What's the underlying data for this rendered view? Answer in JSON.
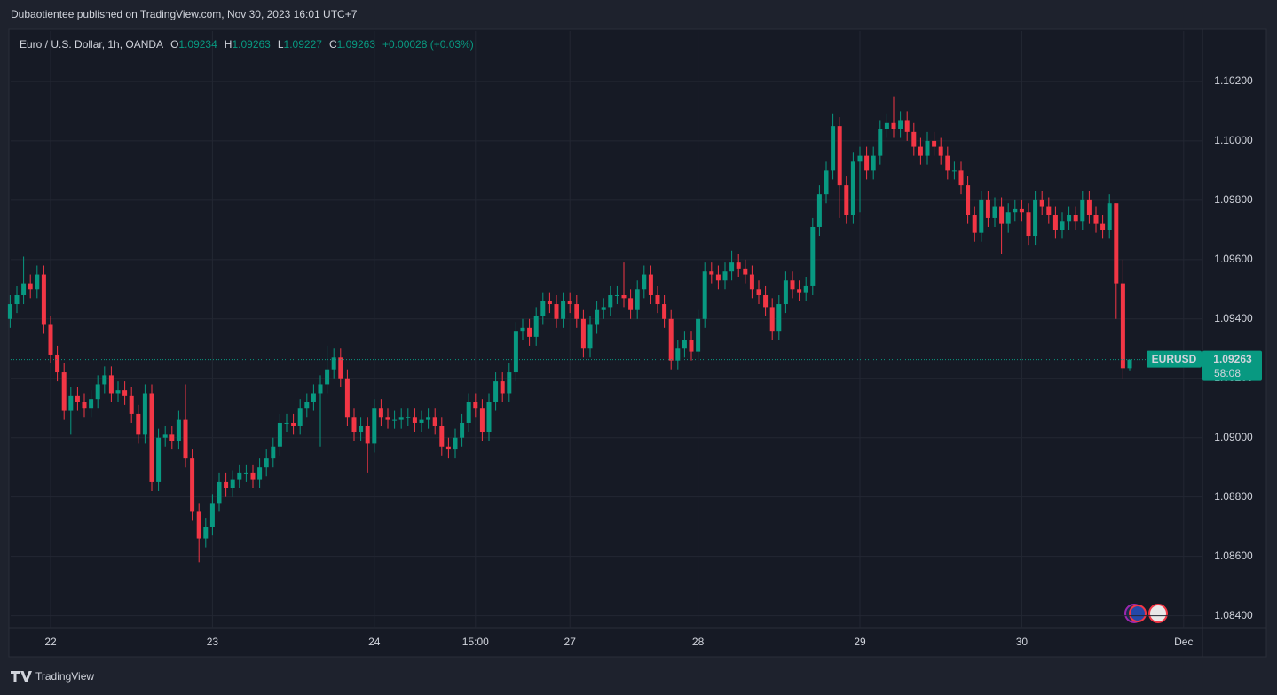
{
  "header": {
    "title": "Dubaotientee published on TradingView.com, Nov 30, 2023 16:01 UTC+7"
  },
  "footer": {
    "brand": "TradingView"
  },
  "chart_data": {
    "type": "candlestick",
    "title": "Euro / U.S. Dollar, 1h, OANDA",
    "legend_labels": {
      "open": "O",
      "high": "H",
      "low": "L",
      "close": "C"
    },
    "change_label": "+0.00028 (+0.03%)",
    "symbol": "EURUSD",
    "countdown": "58:08",
    "colors": {
      "up": "#089981",
      "down": "#f23645"
    },
    "grid": true,
    "ylim": [
      1.0836,
      1.1037
    ],
    "yticks": [
      {
        "value": 1.084,
        "label": "1.08400"
      },
      {
        "value": 1.086,
        "label": "1.08600"
      },
      {
        "value": 1.088,
        "label": "1.08800"
      },
      {
        "value": 1.09,
        "label": "1.09000"
      },
      {
        "value": 1.092,
        "label": "1.09200"
      },
      {
        "value": 1.094,
        "label": "1.09400"
      },
      {
        "value": 1.096,
        "label": "1.09600"
      },
      {
        "value": 1.098,
        "label": "1.09800"
      },
      {
        "value": 1.1,
        "label": "1.10000"
      },
      {
        "value": 1.102,
        "label": "1.10200"
      }
    ],
    "categories": [
      null,
      null,
      null,
      null,
      null,
      null,
      "22",
      null,
      null,
      null,
      null,
      null,
      null,
      null,
      null,
      null,
      null,
      null,
      null,
      null,
      null,
      null,
      null,
      null,
      null,
      null,
      null,
      null,
      null,
      null,
      "23",
      null,
      null,
      null,
      null,
      null,
      null,
      null,
      null,
      null,
      null,
      null,
      null,
      null,
      null,
      null,
      null,
      null,
      null,
      null,
      null,
      null,
      null,
      null,
      "24",
      null,
      null,
      null,
      null,
      null,
      null,
      null,
      null,
      null,
      null,
      null,
      null,
      null,
      null,
      "15:00",
      null,
      null,
      null,
      null,
      null,
      null,
      null,
      null,
      null,
      null,
      null,
      null,
      null,
      "27",
      null,
      null,
      null,
      null,
      null,
      null,
      null,
      null,
      null,
      null,
      null,
      null,
      null,
      null,
      null,
      null,
      null,
      null,
      "28",
      null,
      null,
      null,
      null,
      null,
      null,
      null,
      null,
      null,
      null,
      null,
      null,
      null,
      null,
      null,
      null,
      null,
      null,
      null,
      null,
      null,
      null,
      null,
      "29",
      null,
      null,
      null,
      null,
      null,
      null,
      null,
      null,
      null,
      null,
      null,
      null,
      null,
      null,
      null,
      null,
      null,
      null,
      null,
      null,
      null,
      null,
      null,
      "30",
      null,
      null,
      null,
      null,
      null,
      null,
      null,
      null,
      null,
      null,
      null,
      null,
      null,
      null,
      null,
      null,
      null,
      null,
      null,
      null,
      null,
      null,
      null,
      "Dec"
    ],
    "open": [
      1.094,
      1.0945,
      1.0948,
      1.0952,
      1.095,
      1.0955,
      1.0938,
      1.0928,
      1.0922,
      1.0909,
      1.0914,
      1.0912,
      1.091,
      1.0913,
      1.0918,
      1.0921,
      1.0915,
      1.0916,
      1.0914,
      1.0908,
      1.0901,
      1.0915,
      1.0885,
      1.09,
      1.0901,
      1.0899,
      1.0906,
      1.0893,
      1.0875,
      1.0866,
      1.087,
      1.0878,
      1.0885,
      1.0883,
      1.0886,
      1.0888,
      1.0888,
      1.0886,
      1.089,
      1.0893,
      1.0897,
      1.0905,
      1.0905,
      1.0904,
      1.091,
      1.0912,
      1.0915,
      1.0918,
      1.0923,
      1.0927,
      1.092,
      1.0907,
      1.0902,
      1.0904,
      1.0898,
      1.091,
      1.0907,
      1.0906,
      1.0906,
      1.0907,
      1.0907,
      1.0905,
      1.0906,
      1.0907,
      1.0904,
      1.0897,
      1.0896,
      1.09,
      1.0905,
      1.0912,
      1.091,
      1.0902,
      1.0912,
      1.0919,
      1.0915,
      1.0922,
      1.0936,
      1.0937,
      1.0934,
      1.0941,
      1.0946,
      1.0945,
      1.094,
      1.0946,
      1.0945,
      1.094,
      1.093,
      1.0938,
      1.0943,
      1.0944,
      1.0948,
      1.0948,
      1.0947,
      1.0943,
      1.095,
      1.0955,
      1.0948,
      1.0945,
      1.094,
      1.0926,
      1.093,
      1.0933,
      1.0929,
      1.094,
      1.0956,
      1.0955,
      1.0953,
      1.0956,
      1.0959,
      1.0957,
      1.0955,
      1.095,
      1.0948,
      1.0944,
      1.0936,
      1.0945,
      1.0953,
      1.095,
      1.0949,
      1.0951,
      1.0971,
      1.0982,
      1.099,
      1.1005,
      1.0985,
      1.0975,
      1.0993,
      1.0995,
      1.099,
      1.0995,
      1.1004,
      1.1006,
      1.1004,
      1.1007,
      1.1003,
      1.0998,
      1.0995,
      1.1,
      1.0998,
      1.0995,
      1.099,
      1.099,
      1.0985,
      1.0975,
      1.0969,
      1.098,
      1.0974,
      1.0978,
      1.0972,
      1.0976,
      1.0977,
      1.0976,
      1.0968,
      1.098,
      1.0978,
      1.0975,
      1.097,
      1.0973,
      1.0975,
      1.0973,
      1.098,
      1.0975,
      1.0972,
      1.097,
      1.0979,
      1.0952,
      1.09234,
      null,
      null,
      null,
      null,
      null,
      null,
      null,
      null
    ],
    "high": [
      1.0948,
      1.0951,
      1.0961,
      1.0955,
      1.0958,
      1.0958,
      1.0941,
      1.0931,
      1.0925,
      1.0917,
      1.0917,
      1.0915,
      1.0916,
      1.0921,
      1.0924,
      1.0924,
      1.0919,
      1.0919,
      1.0917,
      1.0911,
      1.0918,
      1.0918,
      1.0903,
      1.0904,
      1.0904,
      1.0909,
      1.0918,
      1.0896,
      1.0878,
      1.0873,
      1.0881,
      1.0888,
      1.0888,
      1.0889,
      1.0891,
      1.0891,
      1.0891,
      1.0893,
      1.0896,
      1.09,
      1.0908,
      1.0908,
      1.0908,
      1.0913,
      1.0915,
      1.0918,
      1.0921,
      1.0931,
      1.093,
      1.093,
      1.0923,
      1.091,
      1.0907,
      1.0907,
      1.0913,
      1.0913,
      1.091,
      1.0909,
      1.091,
      1.091,
      1.091,
      1.0909,
      1.091,
      1.091,
      1.0907,
      1.09,
      1.0903,
      1.0908,
      1.0915,
      1.0915,
      1.0913,
      1.0915,
      1.0922,
      1.0922,
      1.0925,
      1.0939,
      1.094,
      1.094,
      1.0944,
      1.0949,
      1.0949,
      1.0948,
      1.0949,
      1.0949,
      1.0948,
      1.0943,
      1.0941,
      1.0946,
      1.0947,
      1.0951,
      1.0951,
      1.0959,
      1.095,
      1.0953,
      1.0958,
      1.0958,
      1.0951,
      1.0948,
      1.0943,
      1.0933,
      1.0936,
      1.0936,
      1.0943,
      1.0959,
      1.0959,
      1.0958,
      1.0959,
      1.0963,
      1.0962,
      1.096,
      1.0958,
      1.0953,
      1.0951,
      1.0947,
      1.0948,
      1.0956,
      1.0956,
      1.0953,
      1.0954,
      1.0974,
      1.0985,
      1.0993,
      1.1009,
      1.1008,
      1.0988,
      1.0996,
      1.0998,
      1.0998,
      1.0998,
      1.1007,
      1.1009,
      1.1015,
      1.101,
      1.101,
      1.1006,
      1.1001,
      1.1003,
      1.1003,
      1.1001,
      1.0998,
      1.0993,
      1.0993,
      1.0988,
      1.0978,
      1.0983,
      1.0983,
      1.0981,
      1.0981,
      1.0979,
      1.098,
      1.098,
      1.0979,
      1.0983,
      1.0983,
      1.0981,
      1.0978,
      1.0976,
      1.0978,
      1.0978,
      1.0983,
      1.0983,
      1.0978,
      1.0975,
      1.0982,
      1.0979,
      1.096,
      1.09263,
      null,
      null,
      null,
      null,
      null,
      null,
      null,
      null
    ],
    "low": [
      1.0937,
      1.0942,
      1.0945,
      1.0947,
      1.0947,
      1.0935,
      1.0925,
      1.0919,
      1.0906,
      1.0901,
      1.0909,
      1.0907,
      1.0907,
      1.091,
      1.0915,
      1.0912,
      1.0912,
      1.0911,
      1.0905,
      1.0898,
      1.0898,
      1.0882,
      1.0882,
      1.0897,
      1.0896,
      1.0896,
      1.089,
      1.0872,
      1.0858,
      1.0863,
      1.0867,
      1.0875,
      1.088,
      1.088,
      1.0883,
      1.0885,
      1.0883,
      1.0883,
      1.0887,
      1.089,
      1.0894,
      1.0902,
      1.0901,
      1.0901,
      1.0907,
      1.0909,
      1.0897,
      1.0915,
      1.092,
      1.0917,
      1.0904,
      1.0899,
      1.0899,
      1.0888,
      1.0895,
      1.0904,
      1.0903,
      1.0903,
      1.0903,
      1.0904,
      1.0902,
      1.0902,
      1.0903,
      1.0901,
      1.0894,
      1.0893,
      1.0893,
      1.0897,
      1.0902,
      1.0907,
      1.0899,
      1.0899,
      1.0909,
      1.0912,
      1.0912,
      1.0919,
      1.0933,
      1.0931,
      1.0931,
      1.0938,
      1.0942,
      1.0937,
      1.0937,
      1.0942,
      1.0937,
      1.0927,
      1.0927,
      1.0935,
      1.094,
      1.0941,
      1.0945,
      1.0944,
      1.094,
      1.094,
      1.0947,
      1.0945,
      1.0942,
      1.0937,
      1.0923,
      1.0923,
      1.0927,
      1.0926,
      1.0926,
      1.0937,
      1.0952,
      1.095,
      1.095,
      1.0953,
      1.0954,
      1.0952,
      1.0947,
      1.0945,
      1.0941,
      1.0933,
      1.0933,
      1.0942,
      1.0947,
      1.0946,
      1.0946,
      1.0948,
      1.0968,
      1.0979,
      1.0987,
      1.0974,
      1.0972,
      1.0972,
      1.0976,
      1.0987,
      1.0987,
      1.0992,
      1.1001,
      1.1001,
      1.1001,
      1.1,
      1.0995,
      1.0992,
      1.0992,
      1.0995,
      1.0992,
      1.0987,
      1.0987,
      1.0982,
      1.0972,
      1.0966,
      1.0966,
      1.0971,
      1.0971,
      1.0962,
      1.0969,
      1.0973,
      1.0973,
      1.0965,
      1.0965,
      1.0975,
      1.0972,
      1.0967,
      1.0967,
      1.097,
      1.097,
      1.097,
      1.0972,
      1.0969,
      1.0967,
      1.0967,
      1.094,
      1.092,
      1.09227,
      null,
      null,
      null,
      null,
      null,
      null,
      null,
      null
    ],
    "close": [
      1.0945,
      1.0948,
      1.0952,
      1.095,
      1.0955,
      1.0938,
      1.0928,
      1.0922,
      1.0909,
      1.0914,
      1.0912,
      1.091,
      1.0913,
      1.0918,
      1.0921,
      1.0915,
      1.0916,
      1.0914,
      1.0908,
      1.0901,
      1.0915,
      1.0885,
      1.09,
      1.0901,
      1.0899,
      1.0906,
      1.0893,
      1.0875,
      1.0866,
      1.087,
      1.0878,
      1.0885,
      1.0883,
      1.0886,
      1.0888,
      1.0888,
      1.0886,
      1.089,
      1.0893,
      1.0897,
      1.0905,
      1.0905,
      1.0904,
      1.091,
      1.0912,
      1.0915,
      1.0918,
      1.0923,
      1.0927,
      1.092,
      1.0907,
      1.0902,
      1.0904,
      1.0898,
      1.091,
      1.0907,
      1.0906,
      1.0906,
      1.0907,
      1.0907,
      1.0905,
      1.0906,
      1.0907,
      1.0904,
      1.0897,
      1.0896,
      1.09,
      1.0905,
      1.0912,
      1.091,
      1.0902,
      1.0912,
      1.0919,
      1.0915,
      1.0922,
      1.0936,
      1.0937,
      1.0934,
      1.0941,
      1.0946,
      1.0945,
      1.094,
      1.0946,
      1.0945,
      1.094,
      1.093,
      1.0938,
      1.0943,
      1.0944,
      1.0948,
      1.0948,
      1.0947,
      1.0943,
      1.095,
      1.0955,
      1.0948,
      1.0945,
      1.094,
      1.0926,
      1.093,
      1.0933,
      1.0929,
      1.094,
      1.0956,
      1.0955,
      1.0953,
      1.0956,
      1.0959,
      1.0957,
      1.0955,
      1.095,
      1.0948,
      1.0944,
      1.0936,
      1.0945,
      1.0953,
      1.095,
      1.0949,
      1.0951,
      1.0971,
      1.0982,
      1.099,
      1.1005,
      1.0985,
      1.0975,
      1.0993,
      1.0995,
      1.099,
      1.0995,
      1.1004,
      1.1006,
      1.1004,
      1.1007,
      1.1003,
      1.0998,
      1.0995,
      1.1,
      1.0998,
      1.0995,
      1.099,
      1.099,
      1.0985,
      1.0975,
      1.0969,
      1.098,
      1.0974,
      1.0978,
      1.0972,
      1.0976,
      1.0977,
      1.0976,
      1.0968,
      1.098,
      1.0978,
      1.0975,
      1.097,
      1.0973,
      1.0975,
      1.0973,
      1.098,
      1.0975,
      1.0972,
      1.097,
      1.0979,
      1.0952,
      1.09234,
      1.09263,
      null,
      null,
      null,
      null,
      null,
      null,
      null,
      null
    ]
  }
}
